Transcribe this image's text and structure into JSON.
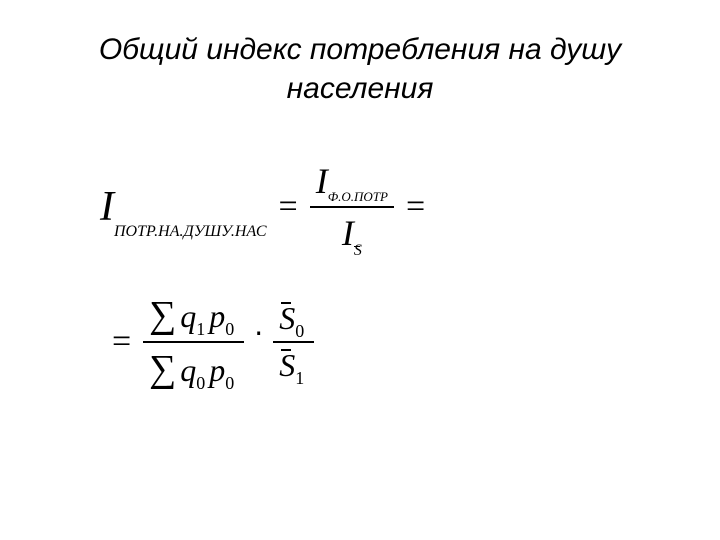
{
  "title": "Общий индекс потребления на душу населения",
  "formula": {
    "main_var": "I",
    "main_sub": "ПОТР.НА.ДУШУ.НАС",
    "frac1_top_var": "I",
    "frac1_top_sub": "Ф.О.ПОТР",
    "frac1_bot_var": "I",
    "frac1_bot_sub": "S",
    "line2_frac1_top_sigma": "∑",
    "line2_frac1_top_q": "q",
    "line2_frac1_top_q_sub": "1",
    "line2_frac1_top_p": "p",
    "line2_frac1_top_p_sub": "0",
    "line2_frac1_bot_sigma": "∑",
    "line2_frac1_bot_q": "q",
    "line2_frac1_bot_q_sub": "0",
    "line2_frac1_bot_p": "p",
    "line2_frac1_bot_p_sub": "0",
    "line2_frac2_top_s": "S",
    "line2_frac2_top_sub": "0",
    "line2_frac2_bot_s": "S",
    "line2_frac2_bot_sub": "1",
    "equals": "=",
    "dot": "⋅"
  }
}
